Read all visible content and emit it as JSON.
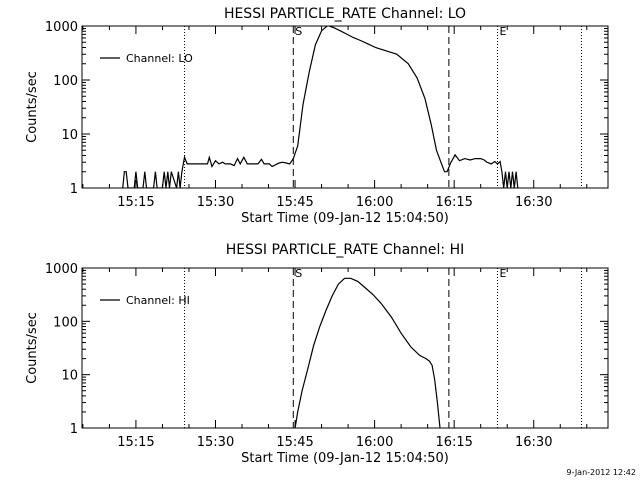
{
  "footer": {
    "timestamp": "9-Jan-2012 12:42"
  },
  "chart_data": [
    {
      "type": "line",
      "title": "HESSI PARTICLE_RATE Channel: LO",
      "xlabel": "Start Time (09-Jan-12 15:04:50)",
      "ylabel": "Counts/sec",
      "yscale": "log",
      "ylim": [
        1,
        1000
      ],
      "xlim": [
        "15:04:50",
        "16:44:00"
      ],
      "xticks": [
        "15:15",
        "15:30",
        "15:45",
        "16:00",
        "16:15",
        "16:30"
      ],
      "yticks": [
        "1",
        "10",
        "100",
        "1000"
      ],
      "legend": {
        "entries": [
          "Channel: LO"
        ],
        "placement": "top-left"
      },
      "markers": [
        {
          "label": "S",
          "time": "15:44:40",
          "style": "dashed"
        },
        {
          "label": "E",
          "time": "16:23:10",
          "style": "dotted"
        }
      ],
      "vlines": [
        {
          "time": "15:24:10",
          "style": "dotted"
        },
        {
          "time": "16:14:00",
          "style": "dashed"
        },
        {
          "time": "16:39:00",
          "style": "dotted"
        }
      ],
      "series": [
        {
          "name": "Channel: LO",
          "x": [
            "15:12:30",
            "15:12:50",
            "15:13:10",
            "15:13:30",
            "15:14:40",
            "15:15:00",
            "15:15:20",
            "15:16:20",
            "15:16:40",
            "15:17:00",
            "15:18:20",
            "15:18:40",
            "15:19:00",
            "15:20:00",
            "15:20:20",
            "15:20:40",
            "15:21:00",
            "15:21:20",
            "15:21:40",
            "15:22:40",
            "15:23:00",
            "15:23:20",
            "15:23:40",
            "15:24:10",
            "15:24:40",
            "15:25:30",
            "15:26:10",
            "15:28:30",
            "15:28:50",
            "15:29:20",
            "15:30:00",
            "15:30:40",
            "15:31:20",
            "15:31:50",
            "15:32:50",
            "15:33:30",
            "15:34:10",
            "15:34:40",
            "15:35:20",
            "15:36:00",
            "15:36:40",
            "15:37:20",
            "15:38:00",
            "15:38:40",
            "15:39:10",
            "15:40:10",
            "15:40:40",
            "15:42:00",
            "15:42:40",
            "15:43:20",
            "15:44:00",
            "15:44:40",
            "15:45:30",
            "15:46:30",
            "15:47:40",
            "15:48:50",
            "15:50:00",
            "15:51:10",
            "15:52:20",
            "15:53:40",
            "15:54:50",
            "15:56:00",
            "15:57:20",
            "15:58:40",
            "16:00:10",
            "16:02:00",
            "16:04:10",
            "16:06:20",
            "16:08:00",
            "16:09:30",
            "16:10:40",
            "16:11:40",
            "16:12:30",
            "16:13:10",
            "16:13:40",
            "16:14:20",
            "16:15:10",
            "16:16:00",
            "16:17:00",
            "16:18:00",
            "16:19:00",
            "16:20:00",
            "16:20:40",
            "16:21:10",
            "16:22:00",
            "16:22:40",
            "16:23:10",
            "16:23:40",
            "16:24:00",
            "16:24:20",
            "16:24:40",
            "16:25:00",
            "16:25:20",
            "16:25:40",
            "16:26:00",
            "16:26:20",
            "16:26:40",
            "16:27:00"
          ],
          "y": [
            1,
            2,
            2,
            1,
            1,
            2,
            1,
            1,
            2,
            1,
            1,
            2,
            1,
            1,
            2,
            1,
            2,
            1,
            2,
            1,
            2,
            1,
            2,
            3.7,
            2.8,
            2.8,
            2.8,
            2.8,
            3.7,
            2.5,
            3.2,
            2.8,
            3,
            2.8,
            2.8,
            2.6,
            3.5,
            2.8,
            3.7,
            2.8,
            2.8,
            2.8,
            2.8,
            3.4,
            2.8,
            2.8,
            2.5,
            2.9,
            3,
            2.9,
            2.8,
            3.5,
            6,
            35,
            140,
            450,
            820,
            1020,
            930,
            800,
            700,
            610,
            540,
            470,
            400,
            350,
            300,
            200,
            110,
            45,
            15,
            5,
            3,
            2,
            2,
            2.9,
            4.1,
            3.2,
            3.5,
            3.3,
            3.5,
            3.5,
            3.3,
            3,
            2.8,
            3.1,
            2.8,
            3.1,
            2,
            1,
            2,
            1,
            2,
            1,
            2,
            1,
            2,
            1
          ]
        }
      ]
    },
    {
      "type": "line",
      "title": "HESSI PARTICLE_RATE Channel: HI",
      "xlabel": "Start Time (09-Jan-12 15:04:50)",
      "ylabel": "Counts/sec",
      "yscale": "log",
      "ylim": [
        1,
        1000
      ],
      "xlim": [
        "15:04:50",
        "16:44:00"
      ],
      "xticks": [
        "15:15",
        "15:30",
        "15:45",
        "16:00",
        "16:15",
        "16:30"
      ],
      "yticks": [
        "1",
        "10",
        "100",
        "1000"
      ],
      "legend": {
        "entries": [
          "Channel: HI"
        ],
        "placement": "top-left"
      },
      "markers": [
        {
          "label": "S",
          "time": "15:44:40",
          "style": "dashed"
        },
        {
          "label": "E",
          "time": "16:23:10",
          "style": "dotted"
        }
      ],
      "vlines": [
        {
          "time": "15:24:10",
          "style": "dotted"
        },
        {
          "time": "16:14:00",
          "style": "dashed"
        },
        {
          "time": "16:39:00",
          "style": "dotted"
        }
      ],
      "series": [
        {
          "name": "Channel: HI",
          "x": [
            "15:45:00",
            "15:45:30",
            "15:46:20",
            "15:47:20",
            "15:48:30",
            "15:49:40",
            "15:50:50",
            "15:52:00",
            "15:53:10",
            "15:54:20",
            "15:55:30",
            "15:56:50",
            "15:58:10",
            "15:59:40",
            "16:01:20",
            "16:03:10",
            "16:05:00",
            "16:06:50",
            "16:08:30",
            "16:09:40",
            "16:10:20",
            "16:10:50",
            "16:11:20",
            "16:11:50",
            "16:12:20"
          ],
          "y": [
            1,
            2,
            5,
            12,
            35,
            80,
            160,
            300,
            500,
            640,
            640,
            560,
            430,
            320,
            210,
            120,
            60,
            33,
            23,
            20,
            18,
            15,
            8,
            3,
            1
          ]
        }
      ]
    }
  ]
}
